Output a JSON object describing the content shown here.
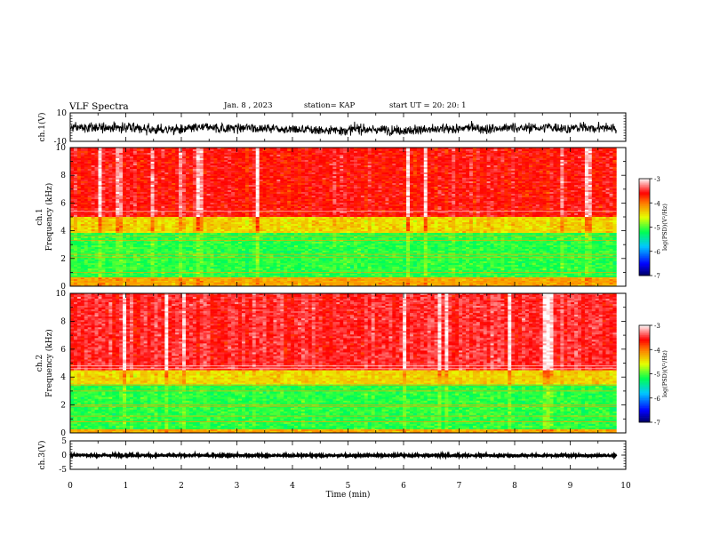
{
  "header": {
    "title": "VLF Spectra",
    "date": "Jan. 8 , 2023",
    "station": "station= KAP",
    "start_ut": "start UT =  20: 20: 1"
  },
  "colors": {
    "spectrum_low": "#0000a0",
    "spectrum_mid": "#00ff00",
    "spectrum_high": "#ff0000",
    "spectrum_top": "#ffffff"
  },
  "chart_data": [
    {
      "type": "line",
      "name": "ch1-waveform",
      "ylabel": "ch.1(V)",
      "xlim": [
        0,
        10
      ],
      "ylim": [
        -10,
        10
      ],
      "ytick_labels": [
        "10",
        "-10"
      ],
      "data_end_min": 9.83,
      "trace_range_v": [
        -6,
        5
      ]
    },
    {
      "type": "heatmap",
      "name": "ch1-spectrogram",
      "ylabel": "Frequency (kHz)",
      "panel_label": "ch.1",
      "xlim": [
        0,
        10
      ],
      "ylim": [
        0,
        10
      ],
      "ytick_labels": [
        "0",
        "2",
        "4",
        "6",
        "8",
        "10"
      ],
      "colorbar": {
        "label": "log(PSD)(V²/Hz)",
        "range": [
          -7,
          -3
        ],
        "tick_labels": [
          "-7",
          "-6",
          "-5",
          "-4",
          "-3"
        ]
      },
      "bands_khz": [
        {
          "from": 0,
          "to": 0.6,
          "level": -4.2
        },
        {
          "from": 0.6,
          "to": 3.8,
          "level": -5.1
        },
        {
          "from": 3.8,
          "to": 5.0,
          "level": -4.4
        },
        {
          "from": 5.0,
          "to": 10,
          "level": -3.6
        }
      ]
    },
    {
      "type": "heatmap",
      "name": "ch2-spectrogram",
      "ylabel": "Frequency (kHz)",
      "panel_label": "ch.2",
      "xlim": [
        0,
        10
      ],
      "ylim": [
        0,
        10
      ],
      "ytick_labels": [
        "0",
        "2",
        "4",
        "6",
        "8",
        "10"
      ],
      "colorbar": {
        "label": "log(PSD)(V²/Hz)",
        "range": [
          -7,
          -3
        ],
        "tick_labels": [
          "-7",
          "-6",
          "-5",
          "-4",
          "-3"
        ]
      },
      "bands_khz": [
        {
          "from": 0,
          "to": 0.2,
          "level": -4.2
        },
        {
          "from": 0.2,
          "to": 3.5,
          "level": -5.1
        },
        {
          "from": 3.5,
          "to": 4.5,
          "level": -4.4
        },
        {
          "from": 4.5,
          "to": 10,
          "level": -3.5
        }
      ]
    },
    {
      "type": "line",
      "name": "ch3-waveform",
      "ylabel": "ch.3(V)",
      "xlim": [
        0,
        10
      ],
      "ylim": [
        -5,
        5
      ],
      "ytick_labels": [
        "5",
        "0",
        "-5"
      ],
      "data_end_min": 9.83,
      "trace_range_v": [
        -0.4,
        0.4
      ]
    }
  ],
  "xaxis": {
    "label": "Time (min)",
    "tick_labels": [
      "0",
      "1",
      "2",
      "3",
      "4",
      "5",
      "6",
      "7",
      "8",
      "9",
      "10"
    ]
  }
}
